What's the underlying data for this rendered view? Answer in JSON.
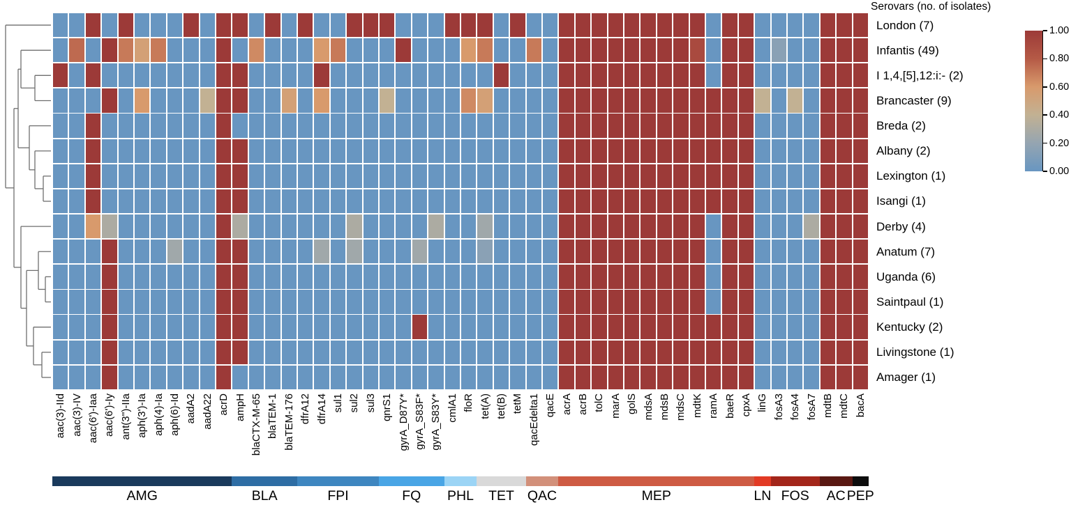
{
  "title": "Serovars (no. of isolates)",
  "chart_data": {
    "type": "heatmap",
    "title": "Serovars (no. of isolates)",
    "value_range": [
      0,
      1
    ],
    "grid": "white gridlines between cells",
    "legend_position": "top-right vertical colorbar",
    "columns": [
      "aac(3)-IId",
      "aac(3)-IV",
      "aac(6')-Iaa",
      "aac(6')-Iy",
      "ant(3'')-IIa",
      "aph(3')-Ia",
      "aph(4)-Ia",
      "aph(6)-Id",
      "aadA2",
      "aadA22",
      "acrD",
      "ampH",
      "blaCTX-M-65",
      "blaTEM-1",
      "blaTEM-176",
      "dfrA12",
      "dfrA14",
      "sul1",
      "sul2",
      "sul3",
      "qnrS1",
      "gyrA_D87Y*",
      "gyrA_S83F*",
      "gyrA_S83Y*",
      "cmlA1",
      "floR",
      "tet(A)",
      "tet(B)",
      "tetM",
      "qacEdelta1",
      "qacE",
      "acrA",
      "acrB",
      "tolC",
      "marA",
      "golS",
      "mdsA",
      "mdsB",
      "mdsC",
      "mdtK",
      "ramA",
      "baeR",
      "cpxA",
      "linG",
      "fosA3",
      "fosA4",
      "fosA7",
      "mdtB",
      "mdtC",
      "bacA"
    ],
    "rows": [
      {
        "label": "London (7)",
        "values": [
          0,
          0,
          1,
          0,
          1,
          0,
          0,
          0,
          1,
          0,
          1,
          1,
          0,
          1,
          0,
          1,
          0,
          0,
          1,
          1,
          1,
          0,
          0,
          0,
          1,
          1,
          1,
          0,
          1,
          0,
          0,
          1,
          1,
          1,
          1,
          1,
          1,
          1,
          1,
          1,
          0,
          1,
          1,
          0,
          0,
          0,
          0,
          1,
          1,
          1
        ]
      },
      {
        "label": "Infantis (49)",
        "values": [
          0,
          0.75,
          0,
          1,
          0.7,
          0.55,
          0.7,
          0,
          0,
          0,
          1,
          0,
          0.65,
          0,
          0,
          0,
          0.6,
          0.7,
          0,
          0,
          0,
          1,
          0,
          0,
          0,
          0.6,
          0.7,
          0,
          0,
          0.7,
          0,
          1,
          1,
          1,
          1,
          1,
          1,
          1,
          1,
          0.9,
          0,
          1,
          1,
          0,
          0.15,
          0,
          0,
          1,
          1,
          1
        ]
      },
      {
        "label": "I 1,4,[5],12:i:- (2)",
        "values": [
          1,
          0,
          1,
          0,
          0,
          0,
          0,
          0,
          0,
          0,
          1,
          1,
          0,
          0,
          0,
          0,
          1,
          0,
          0,
          0,
          0,
          0,
          0,
          0,
          0,
          0,
          0,
          1,
          0,
          0,
          0,
          1,
          1,
          1,
          1,
          1,
          1,
          1,
          1,
          1,
          0,
          1,
          1,
          0,
          0,
          0,
          0,
          1,
          1,
          1
        ]
      },
      {
        "label": "Brancaster (9)",
        "values": [
          0,
          0,
          0,
          1,
          0,
          0.6,
          0,
          0,
          0,
          0.4,
          1,
          1,
          0,
          0,
          0.55,
          0,
          0.6,
          0,
          0,
          0,
          0.4,
          0,
          0,
          0,
          0,
          0.65,
          0.55,
          0,
          0,
          0,
          0,
          1,
          1,
          1,
          1,
          1,
          1,
          1,
          1,
          1,
          1,
          1,
          1,
          0.4,
          0,
          0.4,
          0,
          1,
          1,
          1
        ]
      },
      {
        "label": "Breda (2)",
        "values": [
          0,
          0,
          1,
          0,
          0,
          0,
          0,
          0,
          0,
          0,
          1,
          0,
          0,
          0,
          0,
          0,
          0,
          0,
          0,
          0,
          0,
          0,
          0,
          0,
          0,
          0,
          0,
          0,
          0,
          0,
          0,
          1,
          1,
          1,
          1,
          1,
          1,
          1,
          1,
          1,
          1,
          1,
          1,
          0,
          0,
          0,
          0,
          1,
          1,
          1
        ]
      },
      {
        "label": "Albany (2)",
        "values": [
          0,
          0,
          1,
          0,
          0,
          0,
          0,
          0,
          0,
          0,
          1,
          1,
          0,
          0,
          0,
          0,
          0,
          0,
          0,
          0,
          0,
          0,
          0,
          0,
          0,
          0,
          0,
          0,
          0,
          0,
          0,
          1,
          1,
          1,
          1,
          1,
          1,
          1,
          1,
          1,
          1,
          1,
          1,
          0,
          0,
          0,
          0,
          1,
          1,
          1
        ]
      },
      {
        "label": "Lexington (1)",
        "values": [
          0,
          0,
          1,
          0,
          0,
          0,
          0,
          0,
          0,
          0,
          1,
          1,
          0,
          0,
          0,
          0,
          0,
          0,
          0,
          0,
          0,
          0,
          0,
          0,
          0,
          0,
          0,
          0,
          0,
          0,
          0,
          1,
          1,
          1,
          1,
          1,
          1,
          1,
          1,
          1,
          1,
          1,
          1,
          0,
          0,
          0,
          0,
          1,
          1,
          1
        ]
      },
      {
        "label": "Isangi (1)",
        "values": [
          0,
          0,
          1,
          0,
          0,
          0,
          0,
          0,
          0,
          0,
          1,
          1,
          0,
          0,
          0,
          0,
          0,
          0,
          0,
          0,
          0,
          0,
          0,
          0,
          0,
          0,
          0,
          0,
          0,
          0,
          0,
          1,
          1,
          1,
          1,
          1,
          1,
          1,
          1,
          1,
          1,
          1,
          1,
          0,
          0,
          0,
          0,
          1,
          1,
          1
        ]
      },
      {
        "label": "Derby (4)",
        "values": [
          0,
          0,
          0.6,
          0.3,
          0,
          0,
          0,
          0,
          0,
          0,
          1,
          0.3,
          0,
          0,
          0,
          0,
          0,
          0,
          0.3,
          0,
          0,
          0,
          0,
          0.3,
          0,
          0,
          0.25,
          0,
          0,
          0,
          0,
          1,
          1,
          1,
          1,
          1,
          1,
          1,
          1,
          1,
          0,
          1,
          1,
          0,
          0,
          0,
          0.3,
          1,
          1,
          1
        ]
      },
      {
        "label": "Anatum (7)",
        "values": [
          0,
          0,
          0,
          1,
          0,
          0,
          0,
          0.25,
          0,
          0,
          1,
          1,
          0,
          0,
          0,
          0,
          0.25,
          0,
          0.25,
          0,
          0,
          0,
          0.25,
          0,
          0,
          0,
          0.15,
          0,
          0,
          0,
          0,
          1,
          1,
          1,
          1,
          1,
          1,
          1,
          1,
          1,
          0,
          1,
          1,
          0,
          0,
          0,
          0,
          1,
          1,
          1
        ]
      },
      {
        "label": "Uganda (6)",
        "values": [
          0,
          0,
          0,
          1,
          0,
          0,
          0,
          0,
          0,
          0,
          1,
          1,
          0,
          0,
          0,
          0,
          0,
          0,
          0,
          0,
          0,
          0,
          0,
          0,
          0,
          0,
          0,
          0,
          0,
          0,
          0,
          1,
          1,
          1,
          1,
          1,
          1,
          1,
          1,
          1,
          0,
          1,
          1,
          0,
          0,
          0,
          0,
          1,
          1,
          1
        ]
      },
      {
        "label": "Saintpaul (1)",
        "values": [
          0,
          0,
          0,
          1,
          0,
          0,
          0,
          0,
          0,
          0,
          1,
          1,
          0,
          0,
          0,
          0,
          0,
          0,
          0,
          0,
          0,
          0,
          0,
          0,
          0,
          0,
          0,
          0,
          0,
          0,
          0,
          1,
          1,
          1,
          1,
          1,
          1,
          1,
          1,
          1,
          0,
          1,
          1,
          0,
          0,
          0,
          0,
          1,
          1,
          1
        ]
      },
      {
        "label": "Kentucky (2)",
        "values": [
          0,
          0,
          0,
          1,
          0,
          0,
          0,
          0,
          0,
          0,
          1,
          1,
          0,
          0,
          0,
          0,
          0,
          0,
          0,
          0,
          0,
          0,
          1,
          0,
          0,
          0,
          0,
          0,
          0,
          0,
          0,
          1,
          1,
          1,
          1,
          1,
          1,
          1,
          1,
          1,
          1,
          1,
          1,
          0,
          0,
          0,
          0,
          1,
          1,
          1
        ]
      },
      {
        "label": "Livingstone (1)",
        "values": [
          0,
          0,
          0,
          1,
          0,
          0,
          0,
          0,
          0,
          0,
          1,
          1,
          0,
          0,
          0,
          0,
          0,
          0,
          0,
          0,
          0,
          0,
          0,
          0,
          0,
          0,
          0,
          0,
          0,
          0,
          0,
          1,
          1,
          1,
          1,
          1,
          1,
          1,
          1,
          1,
          1,
          1,
          1,
          0,
          0,
          0,
          0,
          1,
          1,
          1
        ]
      },
      {
        "label": "Amager (1)",
        "values": [
          0,
          0,
          0,
          1,
          0,
          0,
          0,
          0,
          0,
          0,
          1,
          0,
          0,
          0,
          0,
          0,
          0,
          0,
          0,
          0,
          0,
          0,
          0,
          0,
          0,
          0,
          0,
          0,
          0,
          0,
          0,
          1,
          1,
          1,
          1,
          1,
          1,
          1,
          1,
          1,
          1,
          1,
          1,
          0,
          0,
          0,
          0,
          1,
          1,
          1
        ]
      }
    ],
    "colorbar": {
      "min": 0,
      "max": 1,
      "ticks": [
        "1.00",
        "0.80",
        "0.60",
        "0.40",
        "0.20",
        "0.00"
      ]
    },
    "colormap_stops": [
      [
        0,
        "#6896C1"
      ],
      [
        0.2,
        "#95A5B1"
      ],
      [
        0.4,
        "#C2B193"
      ],
      [
        0.6,
        "#D89A6C"
      ],
      [
        0.8,
        "#B55A46"
      ],
      [
        1,
        "#9C3A38"
      ]
    ],
    "gene_categories": [
      {
        "label": "AMG",
        "color": "#1A3A5C",
        "gene_count": 11
      },
      {
        "label": "BLA",
        "color": "#2E6DA4",
        "gene_count": 4
      },
      {
        "label": "FPI",
        "color": "#3E86C0",
        "gene_count": 5
      },
      {
        "label": "FQ",
        "color": "#49A5E5",
        "gene_count": 4
      },
      {
        "label": "PHL",
        "color": "#9BD4F5",
        "gene_count": 2
      },
      {
        "label": "TET",
        "color": "#D9D9D9",
        "gene_count": 3
      },
      {
        "label": "QAC",
        "color": "#D2907A",
        "gene_count": 2
      },
      {
        "label": "MEP",
        "color": "#CE5B43",
        "gene_count": 12
      },
      {
        "label": "LN",
        "color": "#E23A24",
        "gene_count": 1
      },
      {
        "label": "FOS",
        "color": "#A3261A",
        "gene_count": 3
      },
      {
        "label": "AC",
        "color": "#591812",
        "gene_count": 2
      },
      {
        "label": "PEP",
        "color": "#0D0D0D",
        "gene_count": 1
      }
    ],
    "dendrogram": {
      "color": "#6E6E6E",
      "root": {
        "x": 8,
        "children": [
          {
            "leaf": 0
          },
          {
            "x": 20,
            "children": [
              {
                "x": 26,
                "children": [
                  {
                    "x": 30,
                    "children": [
                      {
                        "leaf": 1
                      },
                      {
                        "x": 50,
                        "children": [
                          {
                            "leaf": 2
                          },
                          {
                            "leaf": 3
                          }
                        ]
                      }
                    ]
                  },
                  {
                    "x": 42,
                    "children": [
                      {
                        "leaf": 4
                      },
                      {
                        "x": 50,
                        "children": [
                          {
                            "leaf": 5
                          },
                          {
                            "x": 62,
                            "children": [
                              {
                                "leaf": 6
                              },
                              {
                                "leaf": 7
                              }
                            ]
                          }
                        ]
                      }
                    ]
                  }
                ]
              },
              {
                "x": 30,
                "children": [
                  {
                    "leaf": 8
                  },
                  {
                    "x": 38,
                    "children": [
                      {
                        "x": 55,
                        "children": [
                          {
                            "leaf": 9
                          },
                          {
                            "x": 65,
                            "children": [
                              {
                                "leaf": 10
                              },
                              {
                                "leaf": 11
                              }
                            ]
                          }
                        ]
                      },
                      {
                        "x": 48,
                        "children": [
                          {
                            "leaf": 12
                          },
                          {
                            "x": 60,
                            "children": [
                              {
                                "leaf": 13
                              },
                              {
                                "leaf": 14
                              }
                            ]
                          }
                        ]
                      }
                    ]
                  }
                ]
              }
            ]
          }
        ]
      }
    }
  }
}
